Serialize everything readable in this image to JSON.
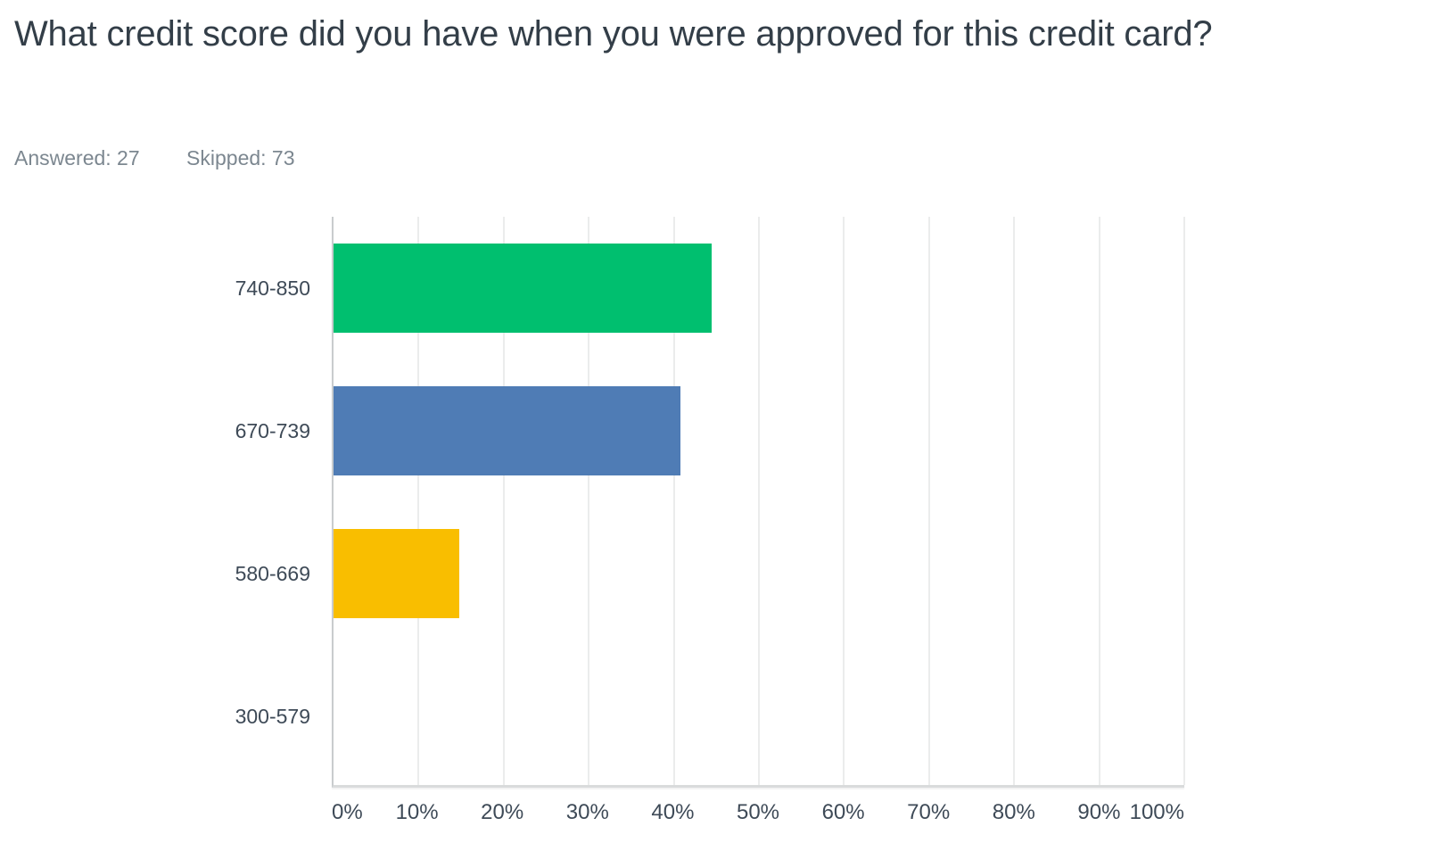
{
  "header": {
    "title": "What credit score did you have when you were approved for this credit card?",
    "answered": "Answered: 27",
    "skipped": "Skipped: 73"
  },
  "colors": {
    "bar_green": "#00BF6F",
    "bar_blue": "#4F7CB5",
    "bar_yellow": "#F9BE00",
    "title_text": "#333E48",
    "meta_text": "#7C8790",
    "axis_text": "#3E4A57",
    "gridline": "#EBECEC"
  },
  "chart_data": {
    "type": "bar",
    "orientation": "horizontal",
    "title": "What credit score did you have when you were approved for this credit card?",
    "categories": [
      "740-850",
      "670-739",
      "580-669",
      "300-579"
    ],
    "values": [
      44.44,
      40.74,
      14.81,
      0
    ],
    "value_unit": "%",
    "bar_colors": [
      "#00BF6F",
      "#4F7CB5",
      "#F9BE00",
      null
    ],
    "x_ticks": [
      "0%",
      "10%",
      "20%",
      "30%",
      "40%",
      "50%",
      "60%",
      "70%",
      "80%",
      "90%",
      "100%"
    ],
    "xlim": [
      0,
      100
    ],
    "grid": "vertical",
    "legend": "none"
  }
}
